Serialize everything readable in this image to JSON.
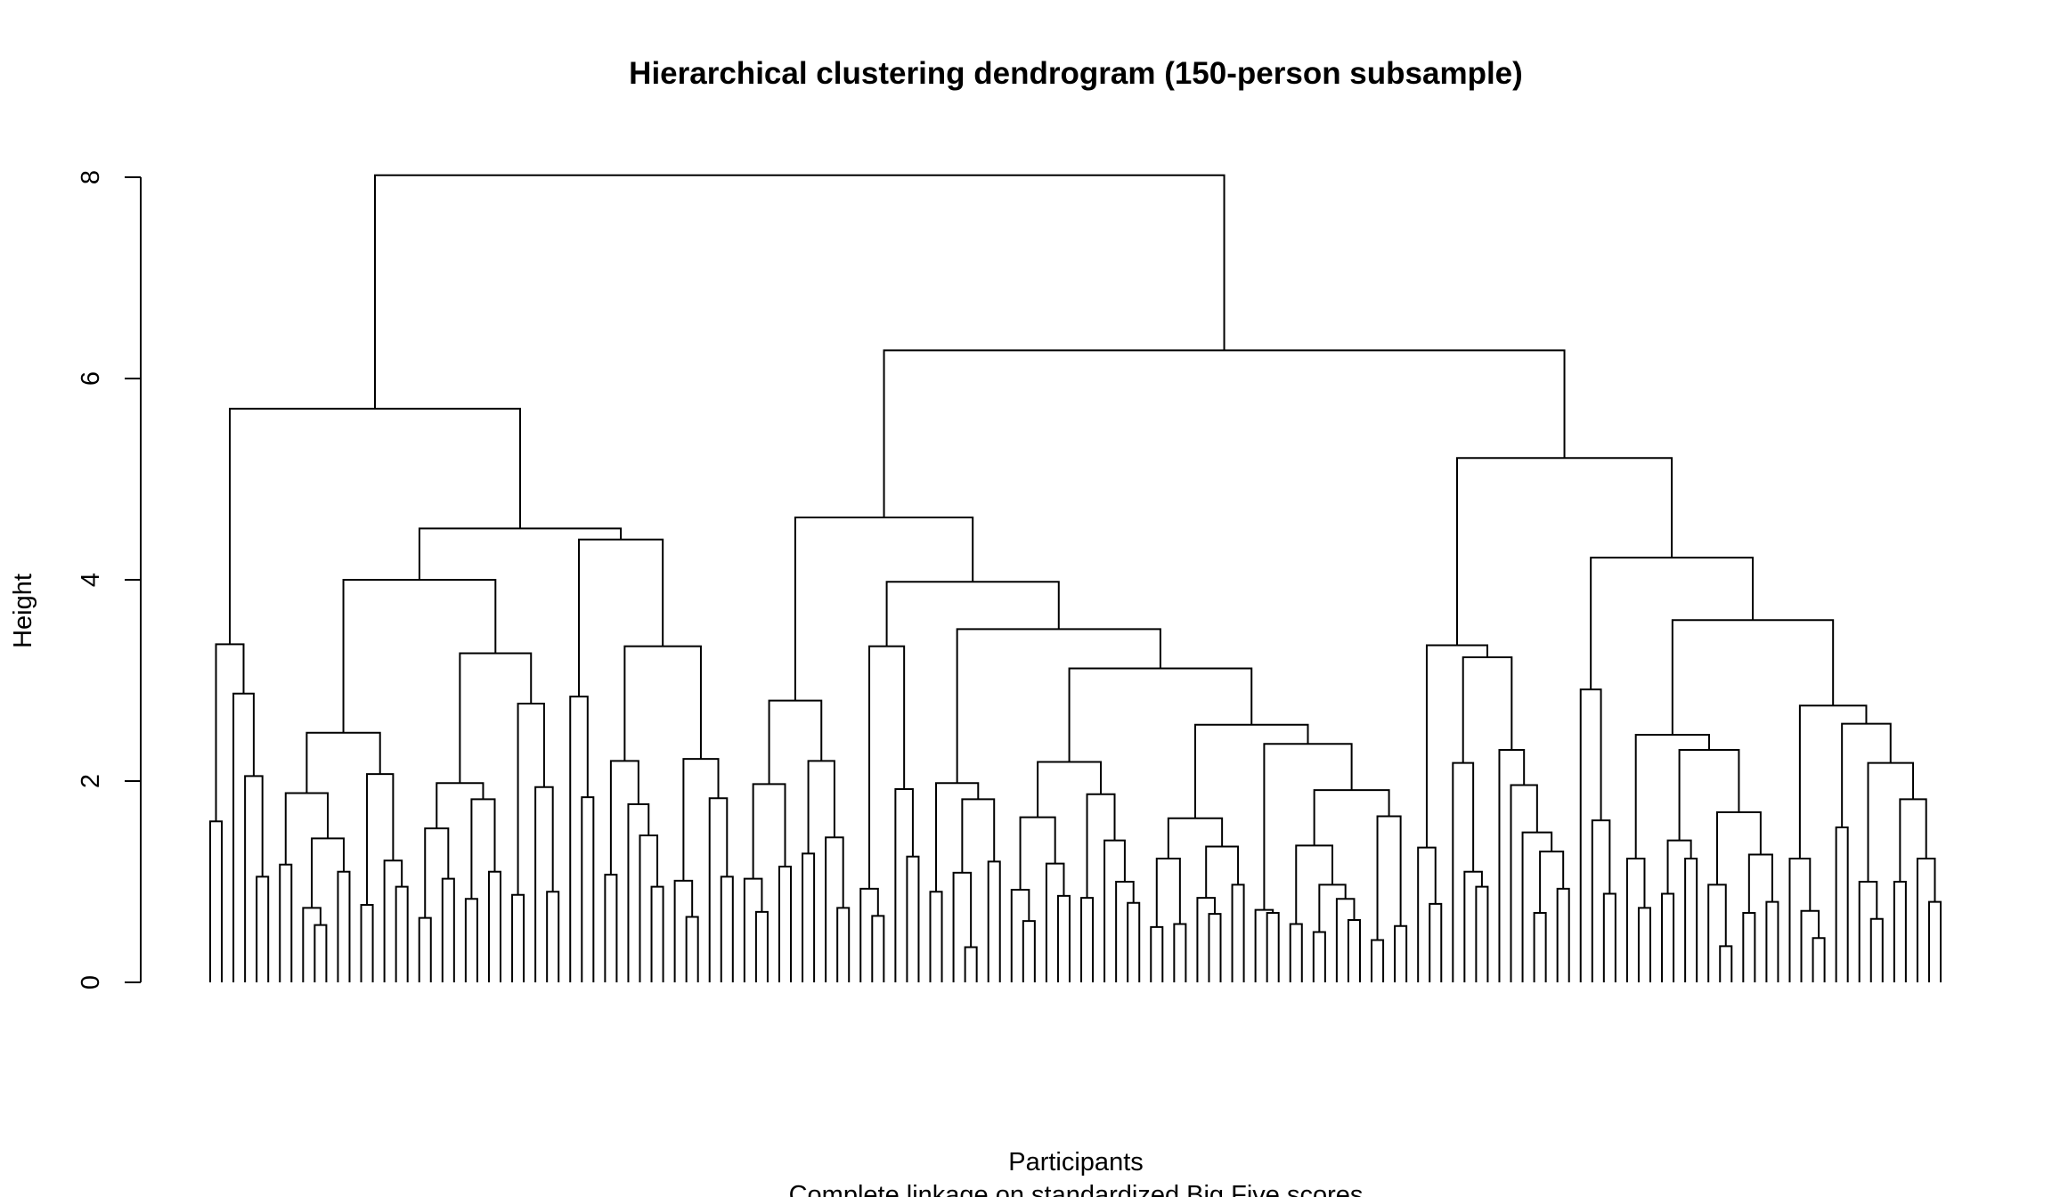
{
  "chart_data": {
    "type": "dendrogram",
    "title": "Hierarchical clustering dendrogram (150-person subsample)",
    "xlabel": "Participants",
    "subtitle": "Complete linkage on standardized Big Five scores",
    "ylabel": "Height",
    "ylim": [
      0,
      8
    ],
    "yticks": [
      0,
      2,
      4,
      6,
      8
    ],
    "n_leaves": 150,
    "tree_format": "node = [merge_height, left, right]; leaf = 0",
    "tree": [
      8.02,
      [
        5.7,
        [
          3.36,
          [
            1.6,
            0,
            0
          ],
          [
            2.87,
            0,
            [
              2.05,
              0,
              [
                1.05,
                0,
                0
              ]
            ]
          ]
        ],
        [
          4.51,
          [
            4.0,
            [
              2.48,
              [
                1.88,
                [
                  1.17,
                  0,
                  0
                ],
                [
                  1.43,
                  [
                    0.74,
                    0,
                    [
                      0.57,
                      0,
                      0
                    ]
                  ],
                  [
                    1.1,
                    0,
                    0
                  ]
                ]
              ],
              [
                2.07,
                [
                  0.77,
                  0,
                  0
                ],
                [
                  1.21,
                  0,
                  [
                    0.95,
                    0,
                    0
                  ]
                ]
              ]
            ],
            [
              3.27,
              [
                1.98,
                [
                  1.53,
                  [
                    0.64,
                    0,
                    0
                  ],
                  [
                    1.03,
                    0,
                    0
                  ]
                ],
                [
                  1.82,
                  [
                    0.83,
                    0,
                    0
                  ],
                  [
                    1.1,
                    0,
                    0
                  ]
                ]
              ],
              [
                2.77,
                [
                  0.87,
                  0,
                  0
                ],
                [
                  1.94,
                  0,
                  [
                    0.9,
                    0,
                    0
                  ]
                ]
              ]
            ]
          ],
          [
            4.4,
            [
              2.84,
              0,
              [
                1.84,
                0,
                0
              ]
            ],
            [
              3.34,
              [
                2.2,
                [
                  1.07,
                  0,
                  0
                ],
                [
                  1.77,
                  0,
                  [
                    1.46,
                    0,
                    [
                      0.95,
                      0,
                      0
                    ]
                  ]
                ]
              ],
              [
                2.22,
                [
                  1.01,
                  0,
                  [
                    0.65,
                    0,
                    0
                  ]
                ],
                [
                  1.83,
                  0,
                  [
                    1.05,
                    0,
                    0
                  ]
                ]
              ]
            ]
          ]
        ]
      ],
      [
        6.28,
        [
          4.62,
          [
            2.8,
            [
              1.97,
              [
                1.03,
                0,
                [
                  0.7,
                  0,
                  0
                ]
              ],
              [
                1.15,
                0,
                0
              ]
            ],
            [
              2.2,
              [
                1.28,
                0,
                0
              ],
              [
                1.44,
                0,
                [
                  0.74,
                  0,
                  0
                ]
              ]
            ]
          ],
          [
            3.98,
            [
              3.34,
              [
                0.93,
                0,
                [
                  0.66,
                  0,
                  0
                ]
              ],
              [
                1.92,
                0,
                [
                  1.25,
                  0,
                  0
                ]
              ]
            ],
            [
              3.51,
              [
                1.98,
                [
                  0.9,
                  0,
                  0
                ],
                [
                  1.82,
                  [
                    1.09,
                    0,
                    [
                      0.35,
                      0,
                      0
                    ]
                  ],
                  [
                    1.2,
                    0,
                    0
                  ]
                ]
              ],
              [
                3.12,
                [
                  2.19,
                  [
                    1.64,
                    [
                      0.92,
                      0,
                      [
                        0.61,
                        0,
                        0
                      ]
                    ],
                    [
                      1.18,
                      0,
                      [
                        0.86,
                        0,
                        0
                      ]
                    ]
                  ],
                  [
                    1.87,
                    [
                      0.84,
                      0,
                      0
                    ],
                    [
                      1.41,
                      0,
                      [
                        1.0,
                        0,
                        [
                          0.79,
                          0,
                          0
                        ]
                      ]
                    ]
                  ]
                ],
                [
                  2.56,
                  [
                    1.63,
                    [
                      1.23,
                      [
                        0.55,
                        0,
                        0
                      ],
                      [
                        0.58,
                        0,
                        0
                      ]
                    ],
                    [
                      1.35,
                      [
                        0.84,
                        0,
                        [
                          0.68,
                          0,
                          0
                        ]
                      ],
                      [
                        0.97,
                        0,
                        0
                      ]
                    ]
                  ],
                  [
                    2.37,
                    [
                      0.72,
                      0,
                      [
                        0.69,
                        0,
                        0
                      ]
                    ],
                    [
                      1.91,
                      [
                        1.36,
                        [
                          0.58,
                          0,
                          0
                        ],
                        [
                          0.97,
                          [
                            0.5,
                            0,
                            0
                          ],
                          [
                            0.83,
                            0,
                            [
                              0.62,
                              0,
                              0
                            ]
                          ]
                        ]
                      ],
                      [
                        1.65,
                        [
                          0.42,
                          0,
                          0
                        ],
                        [
                          0.56,
                          0,
                          0
                        ]
                      ]
                    ]
                  ]
                ]
              ]
            ]
          ]
        ],
        [
          5.21,
          [
            3.35,
            [
              1.34,
              0,
              [
                0.78,
                0,
                0
              ]
            ],
            [
              3.23,
              [
                2.18,
                0,
                [
                  1.1,
                  0,
                  [
                    0.95,
                    0,
                    0
                  ]
                ]
              ],
              [
                2.31,
                0,
                [
                  1.96,
                  0,
                  [
                    1.49,
                    0,
                    [
                      1.3,
                      [
                        0.69,
                        0,
                        0
                      ],
                      [
                        0.93,
                        0,
                        0
                      ]
                    ]
                  ]
                ]
              ]
            ]
          ],
          [
            4.22,
            [
              2.91,
              0,
              [
                1.61,
                0,
                [
                  0.88,
                  0,
                  0
                ]
              ]
            ],
            [
              3.6,
              [
                2.46,
                [
                  1.23,
                  0,
                  [
                    0.74,
                    0,
                    0
                  ]
                ],
                [
                  2.31,
                  [
                    1.41,
                    [
                      0.88,
                      0,
                      0
                    ],
                    [
                      1.23,
                      0,
                      0
                    ]
                  ],
                  [
                    1.69,
                    [
                      0.97,
                      0,
                      [
                        0.36,
                        0,
                        0
                      ]
                    ],
                    [
                      1.27,
                      [
                        0.69,
                        0,
                        0
                      ],
                      [
                        0.8,
                        0,
                        0
                      ]
                    ]
                  ]
                ]
              ],
              [
                2.75,
                [
                  1.23,
                  0,
                  [
                    0.71,
                    0,
                    [
                      0.44,
                      0,
                      0
                    ]
                  ]
                ],
                [
                  2.57,
                  [
                    1.54,
                    0,
                    0
                  ],
                  [
                    2.18,
                    [
                      1.0,
                      0,
                      [
                        0.63,
                        0,
                        0
                      ]
                    ],
                    [
                      1.82,
                      [
                        1.0,
                        0,
                        0
                      ],
                      [
                        1.23,
                        0,
                        [
                          0.8,
                          0,
                          0
                        ]
                      ]
                    ]
                  ]
                ]
              ]
            ]
          ]
        ]
      ]
    ]
  }
}
